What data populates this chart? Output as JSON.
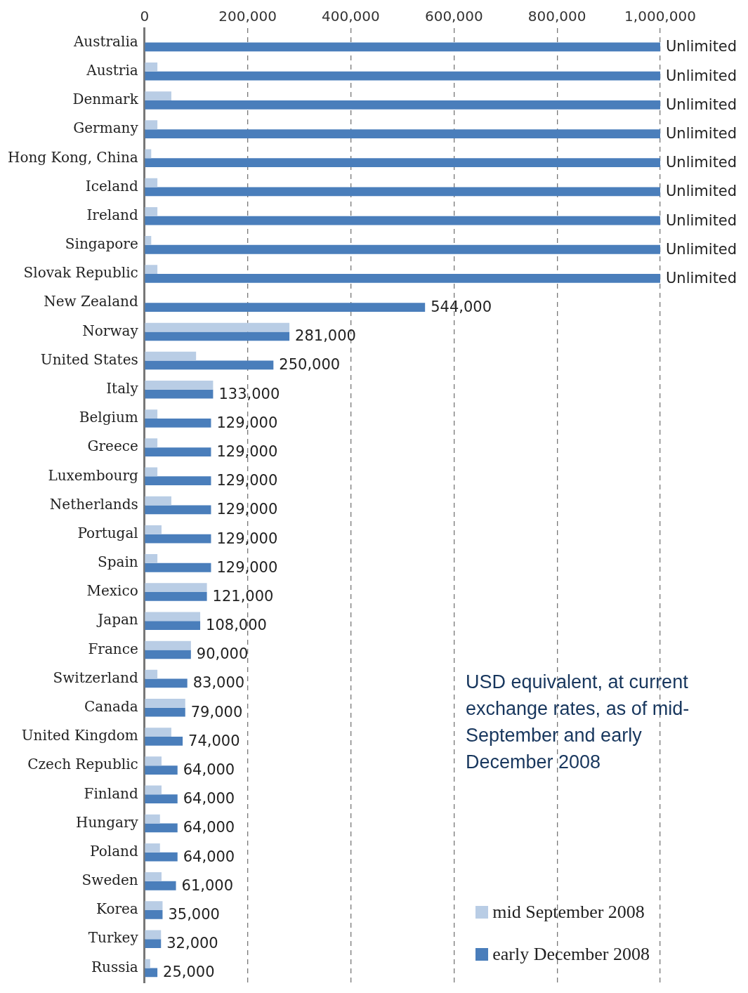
{
  "chart_data": {
    "type": "bar",
    "orientation": "horizontal",
    "categories": [
      "Australia",
      "Austria",
      "Denmark",
      "Germany",
      "Hong Kong, China",
      "Iceland",
      "Ireland",
      "Singapore",
      "Slovak Republic",
      "New Zealand",
      "Norway",
      "United States",
      "Italy",
      "Belgium",
      "Greece",
      "Luxembourg",
      "Netherlands",
      "Portugal",
      "Spain",
      "Mexico",
      "Japan",
      "France",
      "Switzerland",
      "Canada",
      "United Kingdom",
      "Czech Republic",
      "Finland",
      "Hungary",
      "Poland",
      "Sweden",
      "Korea",
      "Turkey",
      "Russia"
    ],
    "series": [
      {
        "name": "mid September 2008",
        "color": "#b9cde5",
        "values": [
          null,
          25000,
          52000,
          25000,
          13000,
          25000,
          25000,
          13000,
          25000,
          null,
          281000,
          100000,
          133000,
          25000,
          25000,
          25000,
          52000,
          33000,
          25000,
          121000,
          108000,
          90000,
          25000,
          79000,
          52000,
          33000,
          33000,
          30000,
          30000,
          33000,
          35000,
          32000,
          11000
        ]
      },
      {
        "name": "early December 2008",
        "color": "#4a7ebb",
        "values": [
          1000000,
          1000000,
          1000000,
          1000000,
          1000000,
          1000000,
          1000000,
          1000000,
          1000000,
          544000,
          281000,
          250000,
          133000,
          129000,
          129000,
          129000,
          129000,
          129000,
          129000,
          121000,
          108000,
          90000,
          83000,
          79000,
          74000,
          64000,
          64000,
          64000,
          64000,
          61000,
          35000,
          32000,
          25000
        ],
        "value_labels": [
          "Unlimited",
          "Unlimited",
          "Unlimited",
          "Unlimited",
          "Unlimited",
          "Unlimited",
          "Unlimited",
          "Unlimited",
          "Unlimited",
          "544,000",
          "281,000",
          "250,000",
          "133,000",
          "129,000",
          "129,000",
          "129,000",
          "129,000",
          "129,000",
          "129,000",
          "121,000",
          "108,000",
          "90,000",
          "83,000",
          "79,000",
          "74,000",
          "64,000",
          "64,000",
          "64,000",
          "64,000",
          "61,000",
          "35,000",
          "32,000",
          "25,000"
        ]
      }
    ],
    "xlim": [
      0,
      1000000
    ],
    "xticks": [
      {
        "value": 0,
        "label": "0"
      },
      {
        "value": 200000,
        "label": "200,000"
      },
      {
        "value": 400000,
        "label": "400,000"
      },
      {
        "value": 600000,
        "label": "600,000"
      },
      {
        "value": 800000,
        "label": "800,000"
      },
      {
        "value": 1000000,
        "label": "1,000,000"
      }
    ],
    "grid": "x",
    "legend": "bottom right",
    "annotations": [
      "USD equivalent, at current exchange rates, as of mid-September and early December 2008"
    ]
  }
}
